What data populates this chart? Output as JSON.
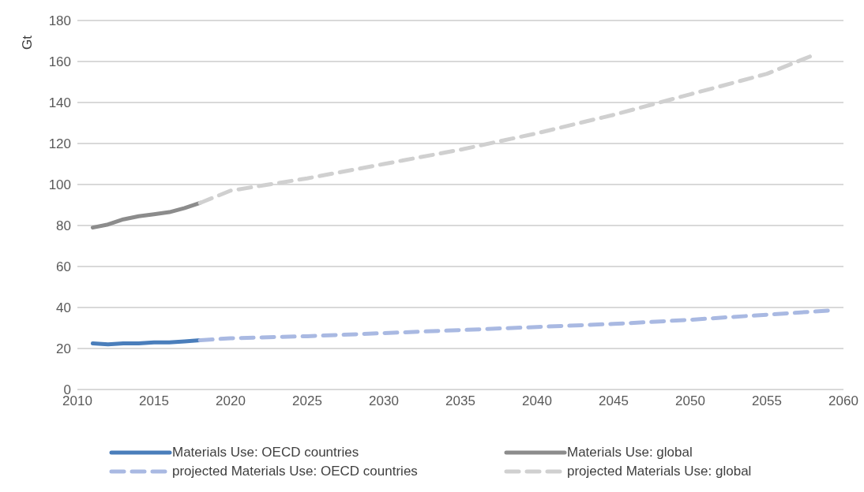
{
  "chart_data": {
    "type": "line",
    "ylabel": "Gt",
    "xlim": [
      2010,
      2060
    ],
    "xticks": [
      2010,
      2015,
      2020,
      2025,
      2030,
      2035,
      2040,
      2045,
      2050,
      2055,
      2060
    ],
    "ylim": [
      0,
      180
    ],
    "yticks": [
      0,
      20,
      40,
      60,
      80,
      100,
      120,
      140,
      160,
      180
    ],
    "grid": "y",
    "legend": "bottom",
    "marker": "none",
    "series": [
      {
        "name": "Materials Use: OECD countries",
        "color": "#4a7ebb",
        "line_style": "solid",
        "x": [
          2011,
          2012,
          2013,
          2014,
          2015,
          2016,
          2017,
          2018
        ],
        "values": [
          22.5,
          22,
          22.5,
          22.5,
          23,
          23,
          23.5,
          24
        ]
      },
      {
        "name": "Materials Use: global",
        "color": "#8c8c8c",
        "line_style": "solid",
        "x": [
          2011,
          2012,
          2013,
          2014,
          2015,
          2016,
          2017,
          2018
        ],
        "values": [
          79,
          80.5,
          83,
          84.5,
          85.5,
          86.5,
          88.5,
          91
        ]
      },
      {
        "name": "projected Materials Use: OECD countries",
        "color": "#a9b9e2",
        "line_style": "dashed",
        "x": [
          2018,
          2020,
          2025,
          2030,
          2035,
          2040,
          2045,
          2050,
          2055,
          2059
        ],
        "values": [
          24,
          25,
          26,
          27.5,
          29,
          30.5,
          32,
          34,
          36.5,
          38.5
        ]
      },
      {
        "name": "projected Materials Use: global",
        "color": "#d0d0d0",
        "line_style": "dashed",
        "x": [
          2018,
          2020,
          2025,
          2030,
          2035,
          2040,
          2045,
          2050,
          2055,
          2058
        ],
        "values": [
          91,
          97,
          103,
          110,
          117,
          125,
          134,
          144,
          154,
          163
        ]
      }
    ]
  }
}
